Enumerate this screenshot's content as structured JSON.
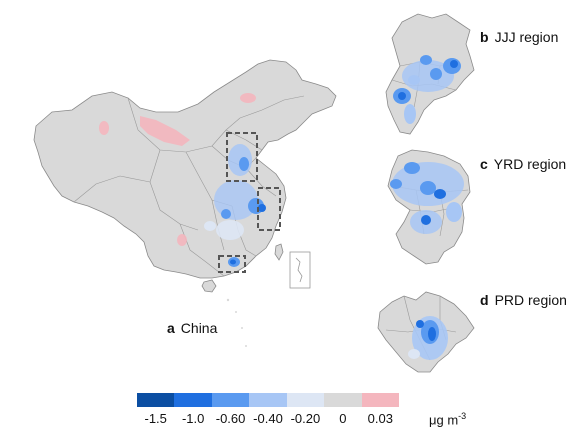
{
  "panels": {
    "a": {
      "letter": "a",
      "name": "China"
    },
    "b": {
      "letter": "b",
      "name": "JJJ region"
    },
    "c": {
      "letter": "c",
      "name": "YRD region"
    },
    "d": {
      "letter": "d",
      "name": "PRD region"
    }
  },
  "legend": {
    "colors": [
      "#0b4ea2",
      "#1f6fe0",
      "#5a9af0",
      "#a7c6f5",
      "#dde6f4",
      "#d9d9d9",
      "#f4b6be"
    ],
    "ticks": [
      "-1.5",
      "-1.0",
      "-0.60",
      "-0.40",
      "-0.20",
      "0",
      "0.03"
    ],
    "unit_base": "μg m",
    "unit_exp": "-3"
  },
  "styles": {
    "land_fill": "#d9d9d9",
    "boundary": "#8a8a8a",
    "box_stroke": "#555555"
  }
}
